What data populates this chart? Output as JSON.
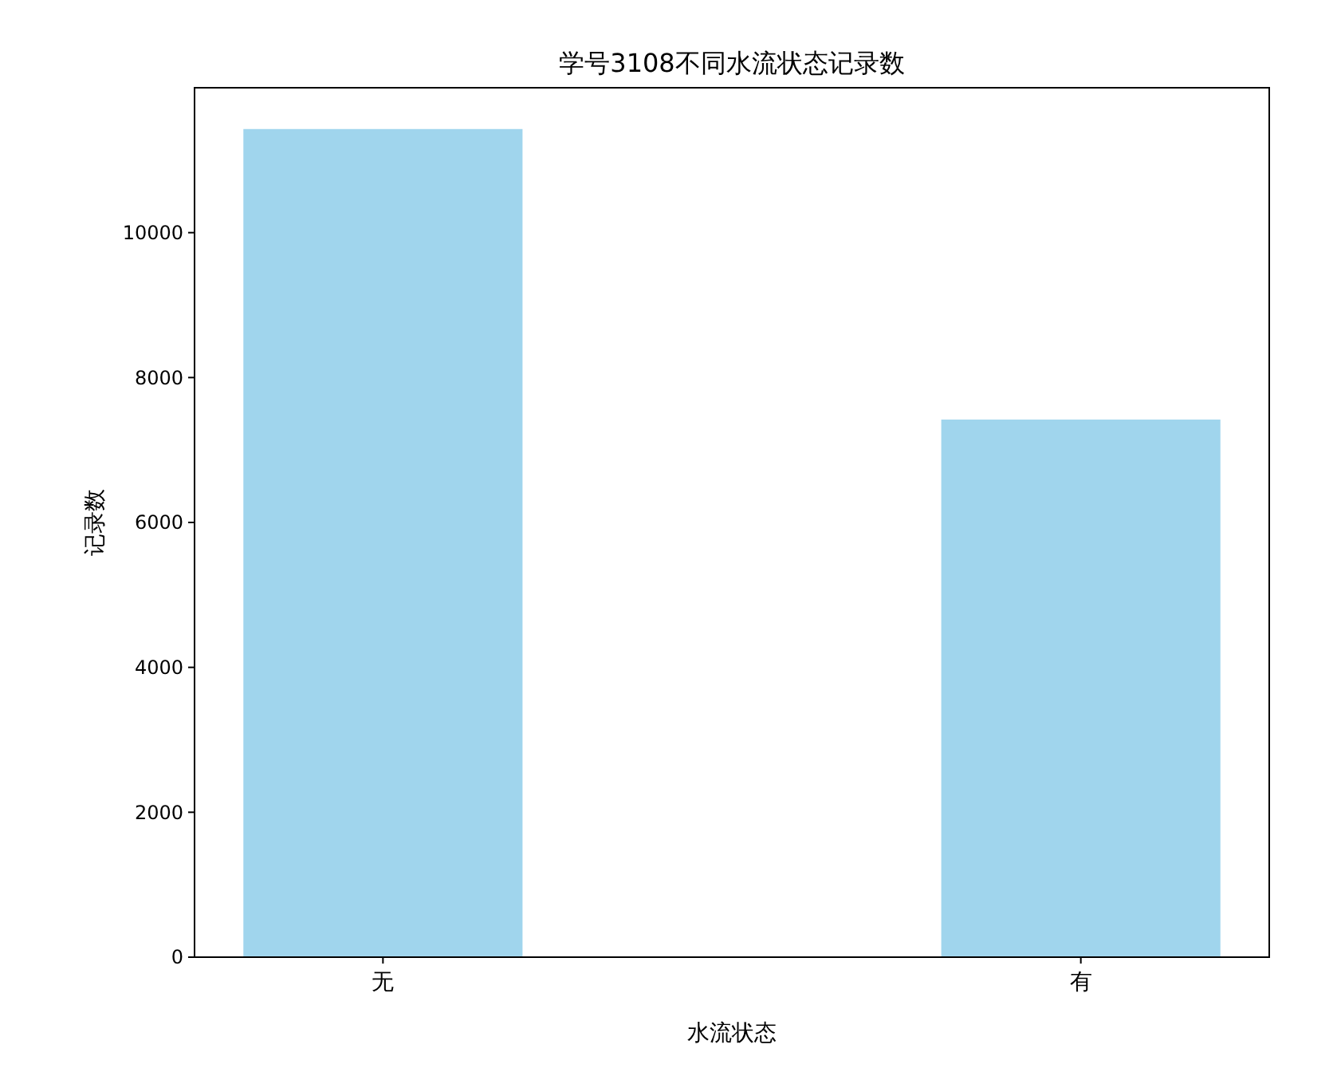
{
  "chart_data": {
    "type": "bar",
    "title": "学号3108不同水流状态记录数",
    "xlabel": "水流状态",
    "ylabel": "记录数",
    "categories": [
      "无",
      "有"
    ],
    "values": [
      11430,
      7420
    ],
    "color": "#a0d5ed",
    "ylim": [
      0,
      12000
    ],
    "yticks": [
      0,
      2000,
      4000,
      6000,
      8000,
      10000
    ],
    "grid": false
  }
}
